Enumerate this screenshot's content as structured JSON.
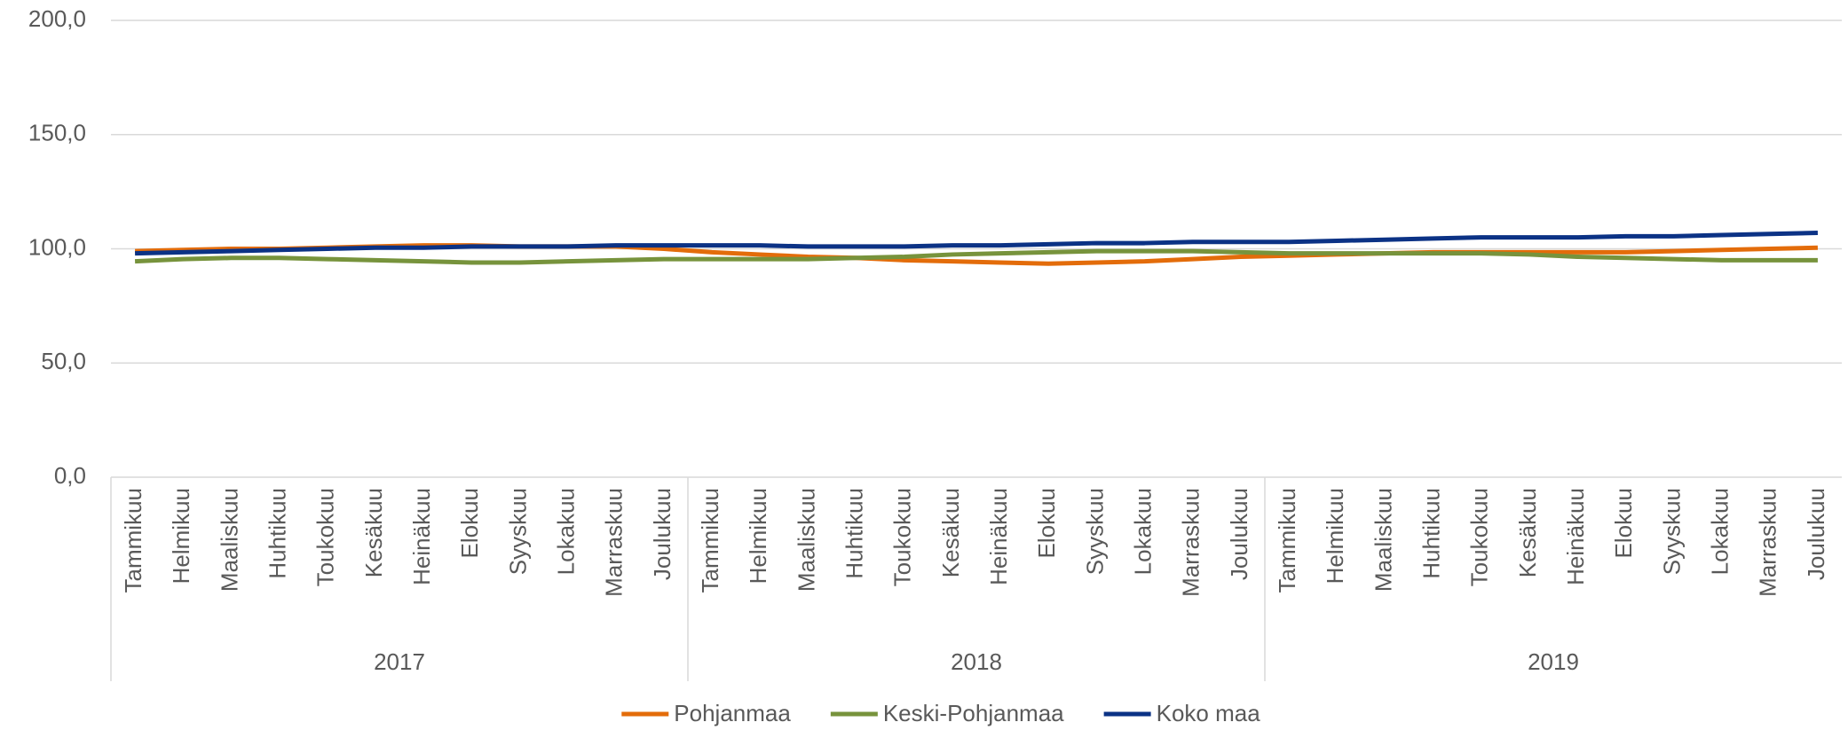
{
  "chart_data": {
    "type": "line",
    "categories": [
      "Tammikuu",
      "Helmikuu",
      "Maaliskuu",
      "Huhtikuu",
      "Toukokuu",
      "Kesäkuu",
      "Heinäkuu",
      "Elokuu",
      "Syyskuu",
      "Lokakuu",
      "Marraskuu",
      "Joulukuu",
      "Tammikuu",
      "Helmikuu",
      "Maaliskuu",
      "Huhtikuu",
      "Toukokuu",
      "Kesäkuu",
      "Heinäkuu",
      "Elokuu",
      "Syyskuu",
      "Lokakuu",
      "Marraskuu",
      "Joulukuu",
      "Tammikuu",
      "Helmikuu",
      "Maaliskuu",
      "Huhtikuu",
      "Toukokuu",
      "Kesäkuu",
      "Heinäkuu",
      "Elokuu",
      "Syyskuu",
      "Lokakuu",
      "Marraskuu",
      "Joulukuu"
    ],
    "category_groups": [
      "2017",
      "2018",
      "2019"
    ],
    "series": [
      {
        "name": "Pohjanmaa",
        "color": "#e36c0a",
        "values": [
          99,
          99.5,
          100,
          100,
          100.5,
          101,
          101.5,
          101.5,
          101,
          101,
          101,
          100,
          98.5,
          97.5,
          96.5,
          96,
          95,
          94.5,
          94,
          93.5,
          94,
          94.5,
          95.5,
          96.5,
          97,
          97.5,
          98,
          98.5,
          98.5,
          98.5,
          98.5,
          98.5,
          99,
          99.5,
          100,
          100.5
        ]
      },
      {
        "name": "Keski-Pohjanmaa",
        "color": "#77933c",
        "values": [
          94.5,
          95.5,
          96,
          96,
          95.5,
          95,
          94.5,
          94,
          94,
          94.5,
          95,
          95.5,
          95.5,
          95.5,
          95.5,
          96,
          96.5,
          97.5,
          98,
          98.5,
          99,
          99,
          99,
          98.5,
          98,
          98,
          98,
          98,
          98,
          97.5,
          96.5,
          96,
          95.5,
          95,
          95,
          95
        ]
      },
      {
        "name": "Koko maa",
        "color": "#0b3285",
        "values": [
          98,
          98.5,
          99,
          99.5,
          100,
          100.5,
          100.5,
          101,
          101,
          101,
          101.5,
          101.5,
          101.5,
          101.5,
          101,
          101,
          101,
          101.5,
          101.5,
          102,
          102.5,
          102.5,
          103,
          103,
          103,
          103.5,
          104,
          104.5,
          105,
          105,
          105,
          105.5,
          105.5,
          106,
          106.5,
          107
        ]
      }
    ],
    "ylim": [
      0,
      200
    ],
    "yticks": [
      {
        "value": 0,
        "label": "0,0"
      },
      {
        "value": 50,
        "label": "50,0"
      },
      {
        "value": 100,
        "label": "100,0"
      },
      {
        "value": 150,
        "label": "150,0"
      },
      {
        "value": 200,
        "label": "200,0"
      }
    ],
    "grid": true,
    "legend": "bottom"
  }
}
